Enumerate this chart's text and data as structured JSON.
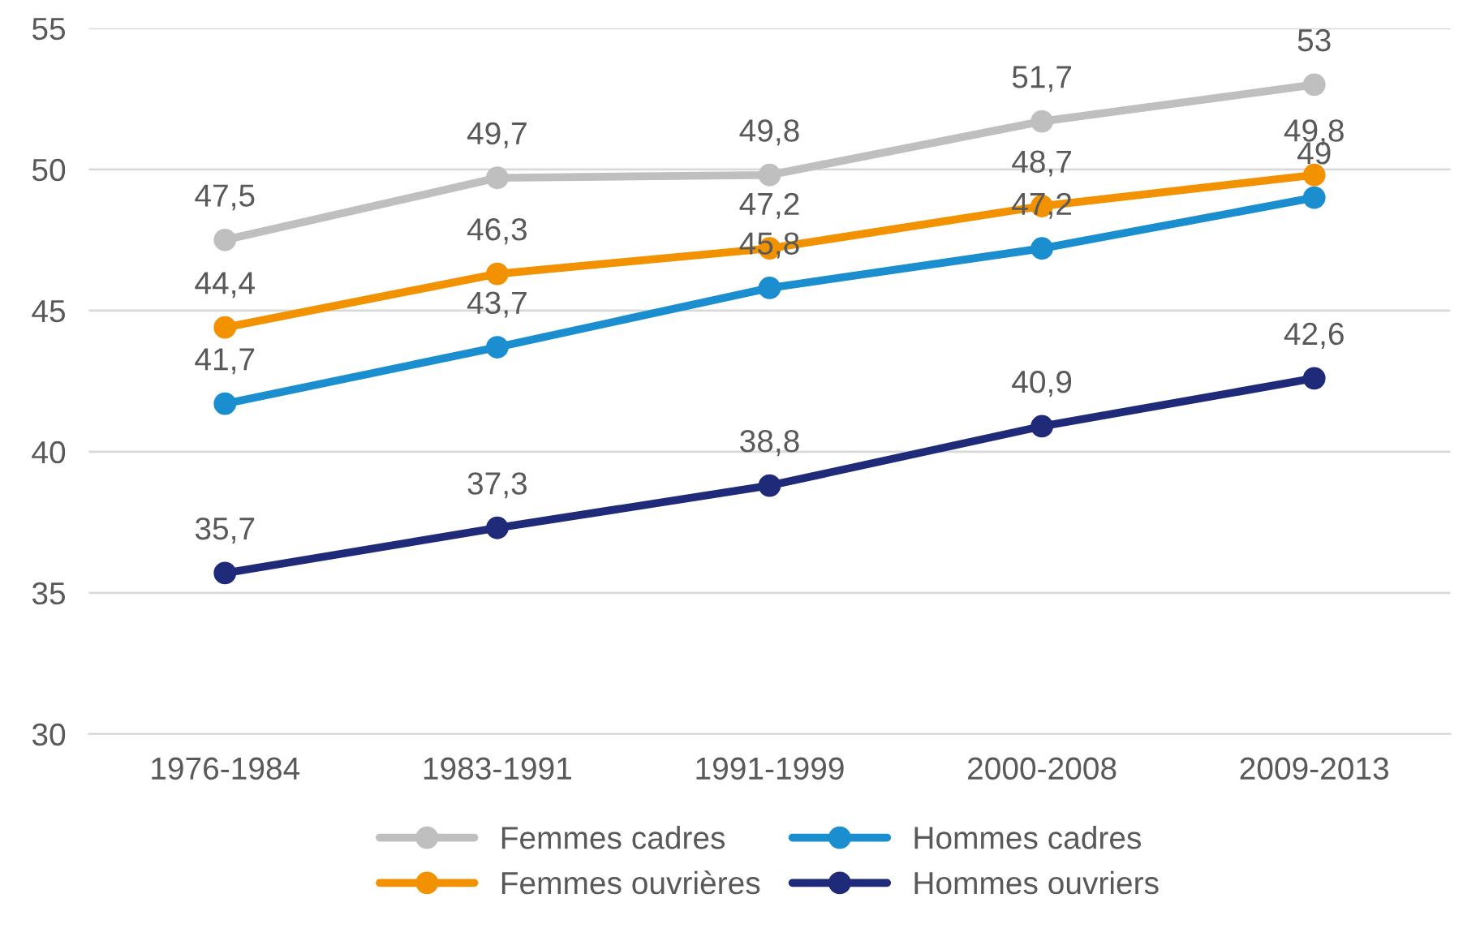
{
  "chart_data": {
    "type": "line",
    "categories": [
      "1976-1984",
      "1983-1991",
      "1991-1999",
      "2000-2008",
      "2009-2013"
    ],
    "series": [
      {
        "name": "Femmes cadres",
        "color": "#bfbfbf",
        "values": [
          47.5,
          49.7,
          49.8,
          51.7,
          53
        ],
        "value_labels": [
          "47,5",
          "49,7",
          "49,8",
          "51,7",
          "53"
        ]
      },
      {
        "name": "Femmes ouvrières",
        "color": "#f39200",
        "values": [
          44.4,
          46.3,
          47.2,
          48.7,
          49.8
        ],
        "value_labels": [
          "44,4",
          "46,3",
          "47,2",
          "48,7",
          "49,8"
        ]
      },
      {
        "name": "Hommes cadres",
        "color": "#1b8ed0",
        "values": [
          41.7,
          43.7,
          45.8,
          47.2,
          49
        ],
        "value_labels": [
          "41,7",
          "43,7",
          "45,8",
          "47,2",
          "49"
        ]
      },
      {
        "name": "Hommes ouvriers",
        "color": "#1f2a78",
        "values": [
          35.7,
          37.3,
          38.8,
          40.9,
          42.6
        ],
        "value_labels": [
          "35,7",
          "37,3",
          "38,8",
          "40,9",
          "42,6"
        ]
      }
    ],
    "ylim": [
      30,
      55
    ],
    "yticks": [
      30,
      35,
      40,
      45,
      50,
      55
    ],
    "grid": "y",
    "legend": "bottom",
    "marker": "circle",
    "line_style": "solid"
  }
}
